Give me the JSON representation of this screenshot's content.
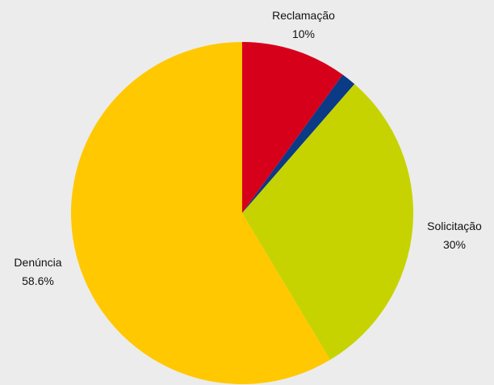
{
  "chart_data": {
    "type": "pie",
    "title": "",
    "slices": [
      {
        "label": "Reclamação",
        "value": 10,
        "value_label": "10%",
        "color": "#d7001a"
      },
      {
        "label": "",
        "value": 1.4,
        "value_label": "",
        "color": "#0b3a86"
      },
      {
        "label": "Solicitação",
        "value": 30,
        "value_label": "30%",
        "color": "#c6d300"
      },
      {
        "label": "Denúncia",
        "value": 58.6,
        "value_label": "58.6%",
        "color": "#ffc800"
      }
    ],
    "start_angle": "12 o'clock",
    "direction": "clockwise",
    "legend": "none",
    "background": "#ececec"
  }
}
